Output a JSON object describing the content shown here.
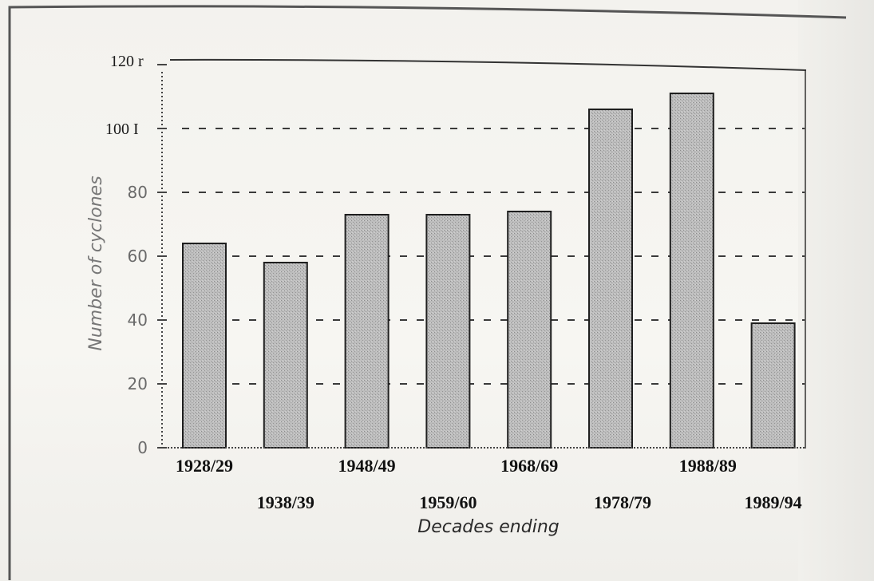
{
  "chart_data": {
    "type": "bar",
    "title": "",
    "xlabel": "Decades ending",
    "ylabel": "Number of cyclones",
    "ylim": [
      0,
      120
    ],
    "y_ticks": [
      {
        "value": 0,
        "label": "0"
      },
      {
        "value": 20,
        "label": "20"
      },
      {
        "value": 40,
        "label": "40"
      },
      {
        "value": 60,
        "label": "60"
      },
      {
        "value": 80,
        "label": "80"
      },
      {
        "value": 100,
        "label": "100 I"
      },
      {
        "value": 120,
        "label": "120 r"
      }
    ],
    "categories": [
      "1928/29",
      "1938/39",
      "1948/49",
      "1959/60",
      "1968/69",
      "1978/79",
      "1988/89",
      "1989/94"
    ],
    "values": [
      64,
      58,
      73,
      73,
      74,
      106,
      111,
      39
    ],
    "grid": "dashed horizontal",
    "bar_color": "#b3b3b3",
    "bar_edge_color": "#1f1f1f"
  }
}
